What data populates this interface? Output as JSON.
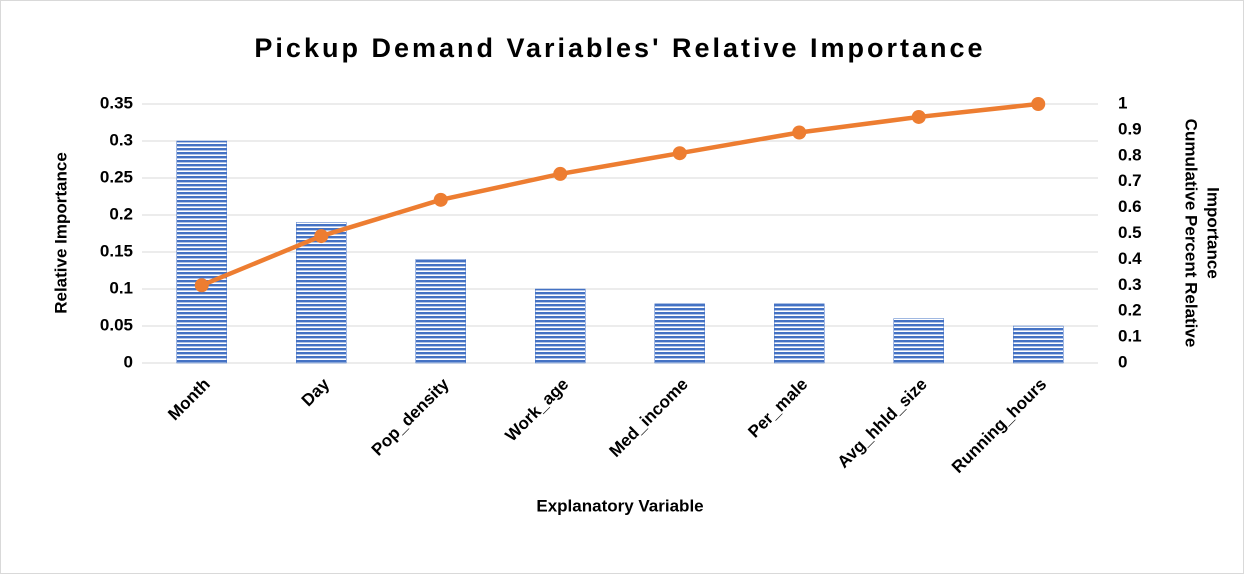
{
  "chart_data": {
    "type": "bar",
    "title": "Pickup Demand Variables' Relative Importance",
    "xlabel": "Explanatory Variable",
    "ylabel": "Relative Importance",
    "y2label": [
      "Cumulative Percent Relative",
      "Importance"
    ],
    "categories": [
      "Month",
      "Day",
      "Pop_density",
      "Work_age",
      "Med_income",
      "Per_male",
      "Avg_hhld_size",
      "Running_hours"
    ],
    "series": [
      {
        "name": "Relative Importance",
        "type": "bar",
        "color": "#4472c4",
        "values": [
          0.3,
          0.19,
          0.14,
          0.1,
          0.08,
          0.08,
          0.06,
          0.05
        ]
      },
      {
        "name": "Cumulative Percent Relative Importance",
        "type": "line",
        "axis": "y2",
        "color": "#ed7d31",
        "values": [
          0.3,
          0.49,
          0.63,
          0.73,
          0.81,
          0.89,
          0.95,
          1.0
        ]
      }
    ],
    "ylim": [
      0,
      0.35
    ],
    "yticks": [
      0,
      0.05,
      0.1,
      0.15,
      0.2,
      0.25,
      0.3,
      0.35
    ],
    "y2lim": [
      0,
      1
    ],
    "y2ticks": [
      0,
      0.1,
      0.2,
      0.3,
      0.4,
      0.5,
      0.6,
      0.7,
      0.8,
      0.9,
      1
    ],
    "grid": true
  }
}
